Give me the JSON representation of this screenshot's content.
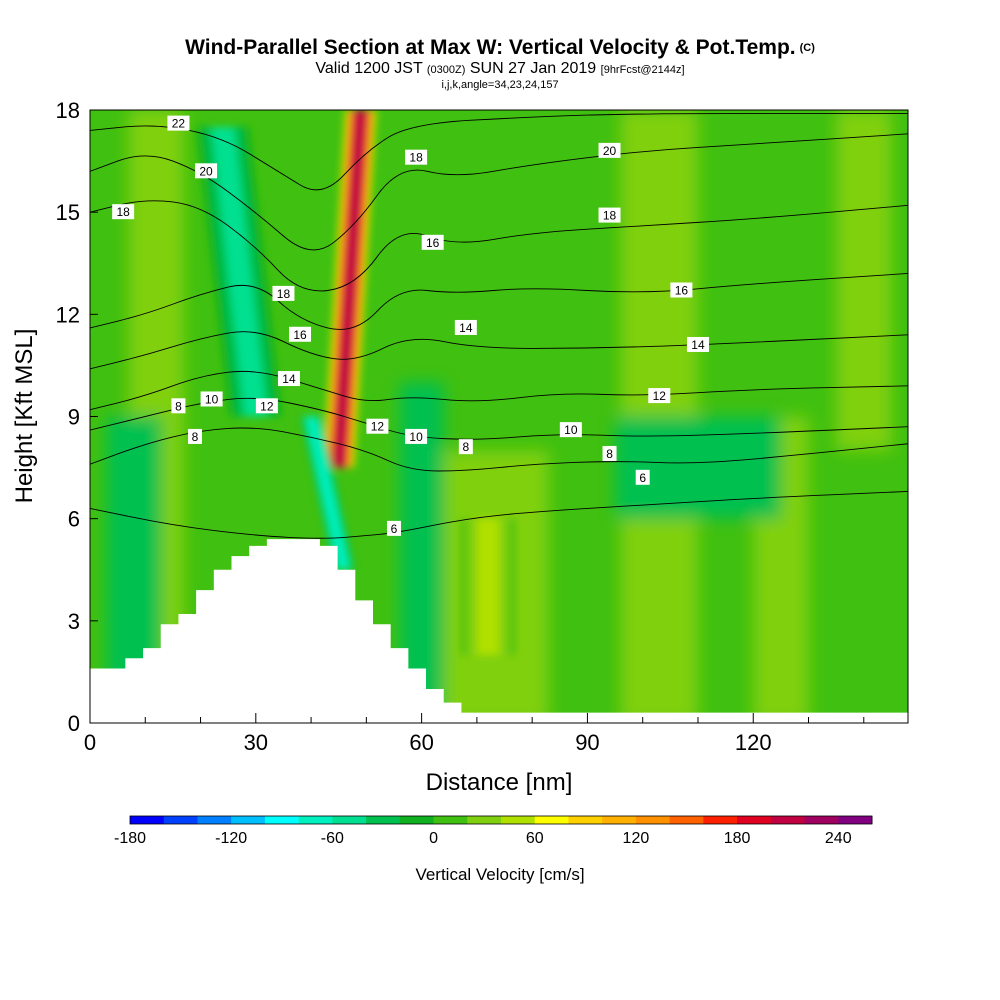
{
  "title": {
    "line1": "Wind-Parallel Section at Max W: Vertical Velocity & Pot.Temp.",
    "copyright": "(C)",
    "line2_a": "Valid 1200 JST",
    "line2_b": "(0300Z)",
    "line2_c": "SUN 27 Jan 2019",
    "line2_d": "[9hrFcst@2144z]",
    "line3": "i,j,k,angle=34,23,24,157"
  },
  "chart_data": {
    "type": "heatmap",
    "xlabel": "Distance [nm]",
    "ylabel": "Height [Kft MSL]",
    "xlim": [
      0,
      148
    ],
    "ylim": [
      0,
      18
    ],
    "x_ticks": [
      {
        "value": 0,
        "label": "0"
      },
      {
        "value": 30,
        "label": "30"
      },
      {
        "value": 60,
        "label": "60"
      },
      {
        "value": 90,
        "label": "90"
      },
      {
        "value": 120,
        "label": "120"
      }
    ],
    "y_ticks": [
      {
        "value": 0,
        "label": "0"
      },
      {
        "value": 3,
        "label": "3"
      },
      {
        "value": 6,
        "label": "6"
      },
      {
        "value": 9,
        "label": "9"
      },
      {
        "value": 12,
        "label": "12"
      },
      {
        "value": 15,
        "label": "15"
      },
      {
        "value": 18,
        "label": "18"
      }
    ],
    "colorbar": {
      "label": "Vertical Velocity [cm/s]",
      "min": -180,
      "max": 270,
      "step": 20,
      "tick_labels": [
        {
          "value": -180,
          "label": "-180"
        },
        {
          "value": -120,
          "label": "-120"
        },
        {
          "value": -60,
          "label": "-60"
        },
        {
          "value": 0,
          "label": "0"
        },
        {
          "value": 60,
          "label": "60"
        },
        {
          "value": 120,
          "label": "120"
        },
        {
          "value": 180,
          "label": "180"
        },
        {
          "value": 240,
          "label": "240"
        }
      ],
      "colors": [
        "#0000ff",
        "#0040ff",
        "#0080ff",
        "#00bfff",
        "#00ffff",
        "#00f0c0",
        "#00e090",
        "#00c050",
        "#10b020",
        "#40c010",
        "#80d010",
        "#b0e000",
        "#ffff00",
        "#ffd000",
        "#ffb000",
        "#ff9000",
        "#ff6000",
        "#ff2000",
        "#e00020",
        "#c00040",
        "#a00060",
        "#800080"
      ]
    },
    "terrain_profile": [
      {
        "x": 0,
        "y": 1.6
      },
      {
        "x": 3.2,
        "y": 1.6
      },
      {
        "x": 6.4,
        "y": 1.9
      },
      {
        "x": 9.6,
        "y": 2.2
      },
      {
        "x": 12.8,
        "y": 2.9
      },
      {
        "x": 16,
        "y": 3.2
      },
      {
        "x": 19.2,
        "y": 3.9
      },
      {
        "x": 22.4,
        "y": 4.5
      },
      {
        "x": 25.6,
        "y": 4.9
      },
      {
        "x": 28.8,
        "y": 5.2
      },
      {
        "x": 32,
        "y": 5.4
      },
      {
        "x": 35.2,
        "y": 5.4
      },
      {
        "x": 38.4,
        "y": 5.4
      },
      {
        "x": 41.6,
        "y": 5.2
      },
      {
        "x": 44.8,
        "y": 4.5
      },
      {
        "x": 48,
        "y": 3.6
      },
      {
        "x": 51.2,
        "y": 2.9
      },
      {
        "x": 54.4,
        "y": 2.2
      },
      {
        "x": 57.6,
        "y": 1.6
      },
      {
        "x": 60.8,
        "y": 1.0
      },
      {
        "x": 64,
        "y": 0.6
      },
      {
        "x": 67.2,
        "y": 0.3
      },
      {
        "x": 70.4,
        "y": 0.3
      },
      {
        "x": 148,
        "y": 0.3
      }
    ],
    "velocity_features": [
      {
        "kind": "updraft",
        "value": 200,
        "x_bottom": 45,
        "x_top": 49,
        "y_bottom": 7.5,
        "y_top": 18,
        "width": 6
      },
      {
        "kind": "downdraft",
        "value": -70,
        "x_bottom": 46,
        "x_top": 40,
        "y_bottom": 4.5,
        "y_top": 9,
        "width": 4
      },
      {
        "kind": "downdraft",
        "value": -50,
        "x_bottom": 30,
        "x_top": 24,
        "y_bottom": 9,
        "y_top": 17.5,
        "width": 10
      },
      {
        "kind": "updraft",
        "value": 40,
        "x_bottom": 72,
        "x_top": 72,
        "y_bottom": 2,
        "y_top": 6,
        "width": 10
      }
    ],
    "contours": [
      {
        "label": "6",
        "points": [
          [
            0,
            6.3
          ],
          [
            15,
            5.8
          ],
          [
            30,
            5.5
          ],
          [
            42,
            5.4
          ],
          [
            50,
            5.5
          ],
          [
            56,
            5.6
          ],
          [
            68,
            6.0
          ],
          [
            80,
            6.2
          ],
          [
            100,
            6.4
          ],
          [
            120,
            6.6
          ],
          [
            148,
            6.8
          ]
        ]
      },
      {
        "label": "8",
        "points": [
          [
            0,
            7.6
          ],
          [
            10,
            8.2
          ],
          [
            20,
            8.6
          ],
          [
            30,
            8.7
          ],
          [
            40,
            8.4
          ],
          [
            50,
            8.0
          ],
          [
            58,
            7.4
          ],
          [
            68,
            7.4
          ],
          [
            80,
            7.6
          ],
          [
            95,
            7.7
          ],
          [
            110,
            7.6
          ],
          [
            130,
            7.9
          ],
          [
            148,
            8.2
          ]
        ]
      },
      {
        "label": "10",
        "points": [
          [
            0,
            8.6
          ],
          [
            10,
            9.0
          ],
          [
            20,
            9.4
          ],
          [
            30,
            9.6
          ],
          [
            42,
            9.2
          ],
          [
            50,
            8.8
          ],
          [
            58,
            8.4
          ],
          [
            70,
            8.3
          ],
          [
            85,
            8.5
          ],
          [
            100,
            8.4
          ],
          [
            120,
            8.5
          ],
          [
            148,
            8.7
          ]
        ]
      },
      {
        "label": "12",
        "points": [
          [
            0,
            9.2
          ],
          [
            10,
            9.6
          ],
          [
            20,
            10.2
          ],
          [
            30,
            10.4
          ],
          [
            42,
            9.8
          ],
          [
            50,
            9.4
          ],
          [
            58,
            9.6
          ],
          [
            70,
            9.4
          ],
          [
            85,
            9.7
          ],
          [
            100,
            9.6
          ],
          [
            120,
            9.8
          ],
          [
            148,
            9.9
          ]
        ]
      },
      {
        "label": "14",
        "points": [
          [
            0,
            10.4
          ],
          [
            10,
            10.8
          ],
          [
            20,
            11.3
          ],
          [
            30,
            11.6
          ],
          [
            40,
            10.8
          ],
          [
            48,
            10.6
          ],
          [
            58,
            11.4
          ],
          [
            70,
            11.0
          ],
          [
            90,
            11.0
          ],
          [
            110,
            11.1
          ],
          [
            148,
            11.4
          ]
        ]
      },
      {
        "label": "16",
        "points": [
          [
            0,
            11.6
          ],
          [
            10,
            12.0
          ],
          [
            20,
            12.6
          ],
          [
            30,
            13.0
          ],
          [
            38,
            11.8
          ],
          [
            48,
            11.4
          ],
          [
            56,
            12.8
          ],
          [
            66,
            12.6
          ],
          [
            80,
            12.8
          ],
          [
            100,
            12.6
          ],
          [
            120,
            12.9
          ],
          [
            148,
            13.2
          ]
        ]
      },
      {
        "label": "18",
        "points": [
          [
            0,
            15.0
          ],
          [
            10,
            15.4
          ],
          [
            20,
            15.2
          ],
          [
            30,
            14.0
          ],
          [
            38,
            12.6
          ],
          [
            48,
            12.8
          ],
          [
            56,
            14.6
          ],
          [
            66,
            14.0
          ],
          [
            80,
            14.4
          ],
          [
            100,
            14.6
          ],
          [
            120,
            14.8
          ],
          [
            148,
            15.2
          ]
        ]
      },
      {
        "label": "20",
        "points": [
          [
            0,
            16.2
          ],
          [
            10,
            16.8
          ],
          [
            20,
            16.2
          ],
          [
            30,
            15.0
          ],
          [
            40,
            13.6
          ],
          [
            48,
            14.6
          ],
          [
            56,
            16.4
          ],
          [
            66,
            16.0
          ],
          [
            80,
            16.4
          ],
          [
            100,
            16.8
          ],
          [
            120,
            17.0
          ],
          [
            148,
            17.3
          ]
        ]
      },
      {
        "label": "22",
        "points": [
          [
            0,
            17.4
          ],
          [
            12,
            17.6
          ],
          [
            24,
            17.2
          ],
          [
            34,
            16.2
          ],
          [
            42,
            15.4
          ],
          [
            50,
            16.8
          ],
          [
            58,
            17.6
          ],
          [
            80,
            17.8
          ],
          [
            100,
            17.9
          ],
          [
            148,
            17.9
          ]
        ]
      }
    ],
    "contour_labels": [
      {
        "text": "22",
        "x": 16,
        "y": 17.6
      },
      {
        "text": "20",
        "x": 21,
        "y": 16.2
      },
      {
        "text": "18",
        "x": 6,
        "y": 15.0
      },
      {
        "text": "18",
        "x": 35,
        "y": 12.6
      },
      {
        "text": "16",
        "x": 38,
        "y": 11.4
      },
      {
        "text": "14",
        "x": 36,
        "y": 10.1
      },
      {
        "text": "12",
        "x": 32,
        "y": 9.3
      },
      {
        "text": "10",
        "x": 22,
        "y": 9.5
      },
      {
        "text": "8",
        "x": 16,
        "y": 9.3
      },
      {
        "text": "8",
        "x": 19,
        "y": 8.4
      },
      {
        "text": "18",
        "x": 59,
        "y": 16.6
      },
      {
        "text": "16",
        "x": 62,
        "y": 14.1
      },
      {
        "text": "14",
        "x": 68,
        "y": 11.6
      },
      {
        "text": "12",
        "x": 52,
        "y": 8.7
      },
      {
        "text": "10",
        "x": 59,
        "y": 8.4
      },
      {
        "text": "8",
        "x": 68,
        "y": 8.1
      },
      {
        "text": "6",
        "x": 55,
        "y": 5.7
      },
      {
        "text": "20",
        "x": 94,
        "y": 16.8
      },
      {
        "text": "18",
        "x": 94,
        "y": 14.9
      },
      {
        "text": "16",
        "x": 107,
        "y": 12.7
      },
      {
        "text": "14",
        "x": 110,
        "y": 11.1
      },
      {
        "text": "12",
        "x": 103,
        "y": 9.6
      },
      {
        "text": "10",
        "x": 87,
        "y": 8.6
      },
      {
        "text": "8",
        "x": 94,
        "y": 7.9
      },
      {
        "text": "6",
        "x": 100,
        "y": 7.2
      }
    ]
  }
}
